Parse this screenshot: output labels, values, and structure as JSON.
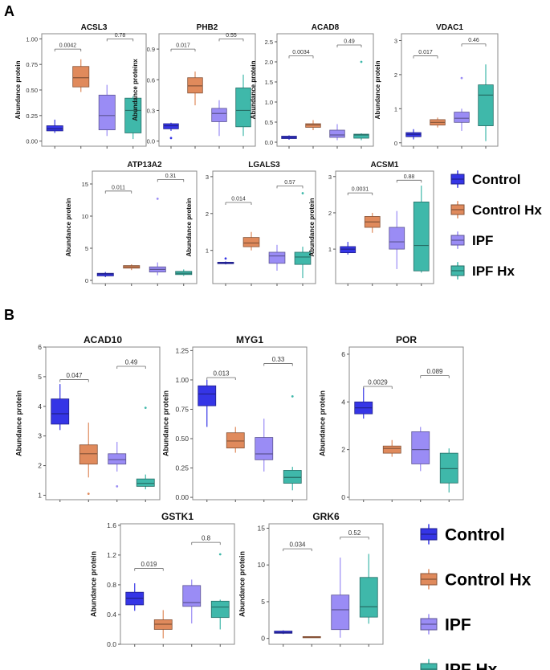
{
  "panels": {
    "A": {
      "letter": "A"
    },
    "B": {
      "letter": "B"
    }
  },
  "legend_labels": [
    "Control",
    "Control Hx",
    "IPF",
    "IPF Hx"
  ],
  "group_colors": {
    "Control": "#3535e6",
    "Control Hx": "#e08a5c",
    "IPF": "#9a8cf5",
    "IPF Hx": "#3fb8aa"
  },
  "chart_data": [
    {
      "id": "acsl3",
      "panel": "A",
      "type": "box",
      "title": "ACSL3",
      "ylabel": "Abundance protein",
      "ylim": [
        -0.05,
        1.05
      ],
      "yticks": [
        0.0,
        0.25,
        0.5,
        0.75,
        1.0
      ],
      "ytick_labels": [
        "0.00",
        "0.25",
        "0.50",
        "0.75",
        "1.00"
      ],
      "groups": [
        "Control",
        "Control Hx",
        "IPF",
        "IPF Hx"
      ],
      "boxes": [
        [
          0.08,
          0.1,
          0.12,
          0.15,
          0.21
        ],
        [
          0.48,
          0.53,
          0.62,
          0.73,
          0.8
        ],
        [
          0.05,
          0.11,
          0.25,
          0.45,
          0.55
        ],
        [
          0.02,
          0.08,
          0.3,
          0.42,
          0.44
        ]
      ],
      "outliers": [
        [],
        [],
        [],
        []
      ],
      "pvals": [
        {
          "g1": 0,
          "g2": 1,
          "label": "0.0042",
          "y": 0.9
        },
        {
          "g1": 2,
          "g2": 3,
          "label": "0.78",
          "y": 1.0
        }
      ]
    },
    {
      "id": "phb2",
      "panel": "A",
      "type": "box",
      "title": "PHB2",
      "ylabel": "Abundance proteinx",
      "ylim": [
        -0.05,
        1.05
      ],
      "yticks": [
        0.0,
        0.3,
        0.6,
        0.9
      ],
      "ytick_labels": [
        "0.0",
        "0.3",
        "0.6",
        "0.9"
      ],
      "groups": [
        "Control",
        "Control Hx",
        "IPF",
        "IPF Hx"
      ],
      "boxes": [
        [
          0.1,
          0.12,
          0.15,
          0.17,
          0.18
        ],
        [
          0.35,
          0.47,
          0.54,
          0.62,
          0.68
        ],
        [
          0.05,
          0.19,
          0.27,
          0.32,
          0.4
        ],
        [
          0.05,
          0.14,
          0.3,
          0.52,
          0.65
        ]
      ],
      "outliers": [
        [
          0.03
        ],
        [],
        [],
        []
      ],
      "pvals": [
        {
          "g1": 0,
          "g2": 1,
          "label": "0.017",
          "y": 0.9
        },
        {
          "g1": 2,
          "g2": 3,
          "label": "0.55",
          "y": 1.0
        }
      ]
    },
    {
      "id": "acad8",
      "panel": "A",
      "type": "box",
      "title": "ACAD8",
      "ylabel": "Abundance protein",
      "ylim": [
        -0.1,
        2.7
      ],
      "yticks": [
        0.0,
        0.5,
        1.0,
        1.5,
        2.0,
        2.5
      ],
      "ytick_labels": [
        "0.0",
        "0.5",
        "1.0",
        "1.5",
        "2.0",
        "2.5"
      ],
      "groups": [
        "Control",
        "Control Hx",
        "IPF",
        "IPF Hx"
      ],
      "boxes": [
        [
          0.06,
          0.09,
          0.12,
          0.15,
          0.17
        ],
        [
          0.3,
          0.37,
          0.43,
          0.46,
          0.55
        ],
        [
          0.05,
          0.12,
          0.18,
          0.3,
          0.45
        ],
        [
          0.05,
          0.1,
          0.18,
          0.2,
          0.22
        ]
      ],
      "outliers": [
        [],
        [],
        [],
        [
          2.0
        ]
      ],
      "pvals": [
        {
          "g1": 0,
          "g2": 1,
          "label": "0.0034",
          "y": 2.15
        },
        {
          "g1": 2,
          "g2": 3,
          "label": "0.49",
          "y": 2.42
        }
      ]
    },
    {
      "id": "vdac1",
      "panel": "A",
      "type": "box",
      "title": "VDAC1",
      "ylabel": "Abundance protein",
      "ylim": [
        -0.1,
        3.2
      ],
      "yticks": [
        0,
        1,
        2,
        3
      ],
      "ytick_labels": [
        "0",
        "1",
        "2",
        "3"
      ],
      "groups": [
        "Control",
        "Control Hx",
        "IPF",
        "IPF Hx"
      ],
      "boxes": [
        [
          0.1,
          0.18,
          0.25,
          0.3,
          0.4
        ],
        [
          0.45,
          0.52,
          0.6,
          0.68,
          0.74
        ],
        [
          0.35,
          0.6,
          0.72,
          0.9,
          1.0
        ],
        [
          0.05,
          0.5,
          1.4,
          1.7,
          2.3
        ]
      ],
      "outliers": [
        [],
        [],
        [
          1.9
        ],
        []
      ],
      "pvals": [
        {
          "g1": 0,
          "g2": 1,
          "label": "0.017",
          "y": 2.55
        },
        {
          "g1": 2,
          "g2": 3,
          "label": "0.46",
          "y": 2.9
        }
      ]
    },
    {
      "id": "atp13a2",
      "panel": "A",
      "type": "box",
      "title": "ATP13A2",
      "ylabel": "Abundance protein",
      "ylim": [
        -0.5,
        17
      ],
      "yticks": [
        0,
        5,
        10,
        15
      ],
      "ytick_labels": [
        "0",
        "5",
        "10",
        "15"
      ],
      "groups": [
        "Control",
        "Control Hx",
        "IPF",
        "IPF Hx"
      ],
      "boxes": [
        [
          0.5,
          0.7,
          1.0,
          1.1,
          1.3
        ],
        [
          1.6,
          1.9,
          2.1,
          2.3,
          2.5
        ],
        [
          0.8,
          1.3,
          1.7,
          2.1,
          2.8
        ],
        [
          0.7,
          0.9,
          1.1,
          1.4,
          1.7
        ]
      ],
      "outliers": [
        [],
        [],
        [
          12.7
        ],
        []
      ],
      "pvals": [
        {
          "g1": 0,
          "g2": 1,
          "label": "0.011",
          "y": 13.9
        },
        {
          "g1": 2,
          "g2": 3,
          "label": "0.31",
          "y": 15.7
        }
      ]
    },
    {
      "id": "lgals3",
      "panel": "A",
      "type": "box",
      "title": "LGALS3",
      "ylabel": "Abundance protein",
      "ylim": [
        0.1,
        3.15
      ],
      "yticks": [
        1,
        2,
        3
      ],
      "ytick_labels": [
        "1",
        "2",
        "3"
      ],
      "groups": [
        "Control",
        "Control Hx",
        "IPF",
        "IPF Hx"
      ],
      "boxes": [
        [
          0.62,
          0.64,
          0.66,
          0.68,
          0.7
        ],
        [
          1.0,
          1.1,
          1.2,
          1.35,
          1.5
        ],
        [
          0.45,
          0.65,
          0.85,
          0.95,
          1.15
        ],
        [
          0.25,
          0.62,
          0.82,
          0.95,
          1.1
        ]
      ],
      "outliers": [
        [
          0.78
        ],
        [],
        [],
        [
          2.55
        ]
      ],
      "pvals": [
        {
          "g1": 0,
          "g2": 1,
          "label": "0.014",
          "y": 2.3
        },
        {
          "g1": 2,
          "g2": 3,
          "label": "0.57",
          "y": 2.75
        }
      ]
    },
    {
      "id": "acsm1",
      "panel": "A",
      "type": "box",
      "title": "ACSM1",
      "ylabel": "Abundance protein",
      "ylim": [
        0.05,
        3.15
      ],
      "yticks": [
        1,
        2,
        3
      ],
      "ytick_labels": [
        "1",
        "2",
        "3"
      ],
      "groups": [
        "Control",
        "Control Hx",
        "IPF",
        "IPF Hx"
      ],
      "boxes": [
        [
          0.85,
          0.9,
          1.0,
          1.07,
          1.2
        ],
        [
          1.45,
          1.6,
          1.75,
          1.9,
          2.0
        ],
        [
          0.45,
          1.0,
          1.2,
          1.6,
          2.05
        ],
        [
          0.35,
          0.4,
          1.1,
          2.3,
          2.75
        ]
      ],
      "outliers": [
        [],
        [],
        [],
        []
      ],
      "pvals": [
        {
          "g1": 0,
          "g2": 1,
          "label": "0.0031",
          "y": 2.55
        },
        {
          "g1": 2,
          "g2": 3,
          "label": "0.88",
          "y": 2.9
        }
      ]
    },
    {
      "id": "acad10",
      "panel": "B",
      "type": "box",
      "title": "ACAD10",
      "ylabel": "Abundance protein",
      "ylim": [
        0.85,
        6.0
      ],
      "yticks": [
        1,
        2,
        3,
        4,
        5,
        6
      ],
      "ytick_labels": [
        "1",
        "2",
        "3",
        "4",
        "5",
        "6"
      ],
      "groups": [
        "Control",
        "Control Hx",
        "IPF",
        "IPF Hx"
      ],
      "boxes": [
        [
          3.2,
          3.4,
          3.75,
          4.25,
          4.75
        ],
        [
          1.6,
          2.05,
          2.4,
          2.7,
          3.45
        ],
        [
          1.8,
          2.05,
          2.2,
          2.4,
          2.8
        ],
        [
          1.2,
          1.3,
          1.4,
          1.55,
          1.7
        ]
      ],
      "outliers": [
        [],
        [
          1.05
        ],
        [
          1.3
        ],
        [
          3.95
        ]
      ],
      "pvals": [
        {
          "g1": 0,
          "g2": 1,
          "label": "0.047",
          "y": 4.9
        },
        {
          "g1": 2,
          "g2": 3,
          "label": "0.49",
          "y": 5.35
        }
      ]
    },
    {
      "id": "myg1",
      "panel": "B",
      "type": "box",
      "title": "MYG1",
      "ylabel": "Abundance protein",
      "ylim": [
        -0.02,
        1.28
      ],
      "yticks": [
        0.0,
        0.25,
        0.5,
        0.75,
        1.0,
        1.25
      ],
      "ytick_labels": [
        "0.00",
        "0.25",
        "0.50",
        "0.75",
        "1.00",
        "1.25"
      ],
      "groups": [
        "Control",
        "Control Hx",
        "IPF",
        "IPF Hx"
      ],
      "boxes": [
        [
          0.6,
          0.78,
          0.88,
          0.95,
          1.0
        ],
        [
          0.38,
          0.42,
          0.48,
          0.55,
          0.6
        ],
        [
          0.22,
          0.32,
          0.37,
          0.51,
          0.67
        ],
        [
          0.06,
          0.12,
          0.17,
          0.23,
          0.26
        ]
      ],
      "outliers": [
        [],
        [],
        [],
        [
          0.86
        ]
      ],
      "pvals": [
        {
          "g1": 0,
          "g2": 1,
          "label": "0.013",
          "y": 1.02
        },
        {
          "g1": 2,
          "g2": 3,
          "label": "0.33",
          "y": 1.14
        }
      ]
    },
    {
      "id": "por",
      "panel": "B",
      "type": "box",
      "title": "POR",
      "ylabel": "Abundance protein",
      "ylim": [
        -0.1,
        6.3
      ],
      "yticks": [
        0,
        2,
        4,
        6
      ],
      "ytick_labels": [
        "0",
        "2",
        "4",
        "6"
      ],
      "groups": [
        "Control",
        "Control Hx",
        "IPF",
        "IPF Hx"
      ],
      "boxes": [
        [
          3.3,
          3.5,
          3.75,
          4.0,
          4.6
        ],
        [
          1.7,
          1.85,
          2.05,
          2.15,
          2.4
        ],
        [
          1.1,
          1.4,
          2.0,
          2.75,
          2.95
        ],
        [
          0.2,
          0.6,
          1.2,
          1.85,
          2.05
        ]
      ],
      "outliers": [
        [],
        [],
        [],
        []
      ],
      "pvals": [
        {
          "g1": 0,
          "g2": 1,
          "label": "0.0029",
          "y": 4.65
        },
        {
          "g1": 2,
          "g2": 3,
          "label": "0.089",
          "y": 5.1
        }
      ]
    },
    {
      "id": "gstk1",
      "panel": "B",
      "type": "box",
      "title": "GSTK1",
      "ylabel": "Abundance protein",
      "ylim": [
        0.0,
        1.62
      ],
      "yticks": [
        0.0,
        0.4,
        0.8,
        1.2,
        1.6
      ],
      "ytick_labels": [
        "0.0",
        "0.4",
        "0.8",
        "1.2",
        "1.6"
      ],
      "groups": [
        "Control",
        "Control Hx",
        "IPF",
        "IPF Hx"
      ],
      "boxes": [
        [
          0.45,
          0.53,
          0.62,
          0.7,
          0.82
        ],
        [
          0.08,
          0.2,
          0.27,
          0.33,
          0.46
        ],
        [
          0.28,
          0.51,
          0.56,
          0.79,
          0.87
        ],
        [
          0.2,
          0.36,
          0.5,
          0.58,
          0.6
        ]
      ],
      "outliers": [
        [],
        [],
        [],
        [
          1.21
        ]
      ],
      "pvals": [
        {
          "g1": 0,
          "g2": 1,
          "label": "0.019",
          "y": 1.02
        },
        {
          "g1": 2,
          "g2": 3,
          "label": "0.8",
          "y": 1.37
        }
      ]
    },
    {
      "id": "grk6",
      "panel": "B",
      "type": "box",
      "title": "GRK6",
      "ylabel": "Abundance protein",
      "ylim": [
        -0.8,
        15.6
      ],
      "yticks": [
        0,
        5,
        10,
        15
      ],
      "ytick_labels": [
        "0",
        "5",
        "10",
        "15"
      ],
      "groups": [
        "Control",
        "Control Hx",
        "IPF",
        "IPF Hx"
      ],
      "boxes": [
        [
          0.6,
          0.7,
          0.8,
          1.0,
          1.1
        ],
        [
          0.1,
          0.15,
          0.2,
          0.25,
          0.3
        ],
        [
          0.1,
          1.2,
          3.9,
          5.9,
          11.0
        ],
        [
          2.0,
          2.9,
          4.3,
          8.3,
          11.5
        ]
      ],
      "outliers": [
        [],
        [],
        [],
        []
      ],
      "pvals": [
        {
          "g1": 0,
          "g2": 1,
          "label": "0.034",
          "y": 12.2
        },
        {
          "g1": 2,
          "g2": 3,
          "label": "0.52",
          "y": 13.8
        }
      ]
    }
  ]
}
